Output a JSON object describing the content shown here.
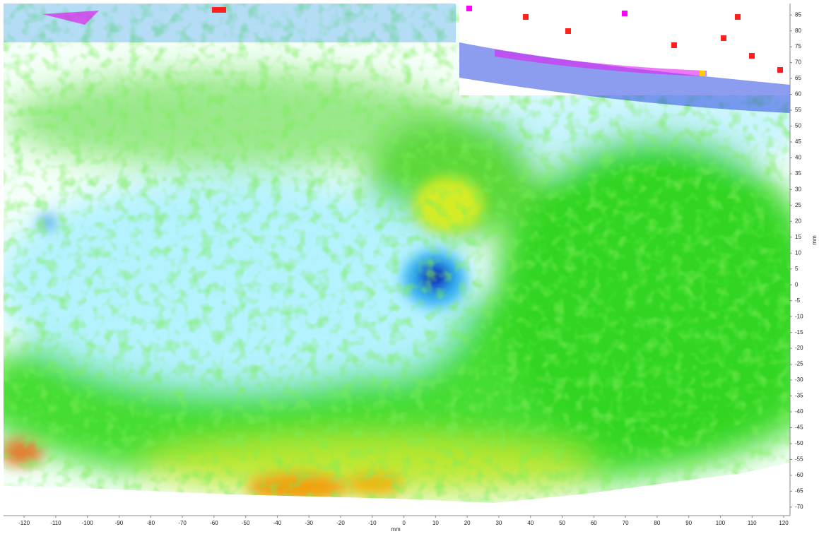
{
  "chart_data": {
    "type": "contour",
    "xlabel": "mm",
    "ylabel": "mm",
    "xlim": [
      -126.5,
      122
    ],
    "ylim": [
      -72.7,
      88.6
    ],
    "xticks": [
      -120,
      -110,
      -100,
      -90,
      -80,
      -70,
      -60,
      -50,
      -40,
      -30,
      -20,
      -10,
      0,
      10,
      20,
      30,
      40,
      50,
      60,
      70,
      80,
      90,
      100,
      110,
      120
    ],
    "yticks": [
      -70,
      -65,
      -60,
      -55,
      -50,
      -45,
      -40,
      -35,
      -30,
      -25,
      -20,
      -15,
      -10,
      -5,
      0,
      5,
      10,
      15,
      20,
      25,
      30,
      35,
      40,
      45,
      50,
      55,
      60,
      65,
      70,
      75,
      80,
      85
    ]
  }
}
